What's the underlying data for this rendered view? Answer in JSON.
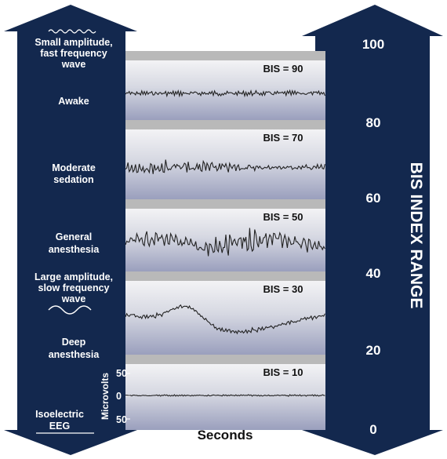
{
  "left_column": {
    "top_label_lines": [
      "Small amplitude,",
      "fast frequency",
      "wave"
    ],
    "states": [
      {
        "lines": [
          "Awake"
        ]
      },
      {
        "lines": [
          "Moderate",
          "sedation"
        ]
      },
      {
        "lines": [
          "General",
          "anesthesia"
        ]
      },
      {
        "lines": [
          "Large amplitude,",
          "slow frequency",
          "wave"
        ]
      },
      {
        "lines": [
          "Deep",
          "anesthesia"
        ]
      },
      {
        "lines": [
          "Isoelectric",
          "EEG"
        ]
      }
    ]
  },
  "right_column": {
    "title": "BIS INDEX RANGE",
    "ticks": [
      "100",
      "80",
      "60",
      "40",
      "20",
      "0"
    ]
  },
  "panels": [
    {
      "label": "BIS = 90",
      "bis": 90
    },
    {
      "label": "BIS = 70",
      "bis": 70
    },
    {
      "label": "BIS = 50",
      "bis": 50
    },
    {
      "label": "BIS = 30",
      "bis": 30
    },
    {
      "label": "BIS = 10",
      "bis": 10
    }
  ],
  "axis": {
    "x_label": "Seconds",
    "y_label": "Microvolts",
    "y_ticks": [
      "50",
      "0",
      "50"
    ]
  },
  "colors": {
    "navy": "#13284e",
    "panel_top": "#f0f0f2",
    "panel_bottom": "#9fa3bf",
    "trace": "#222222"
  }
}
